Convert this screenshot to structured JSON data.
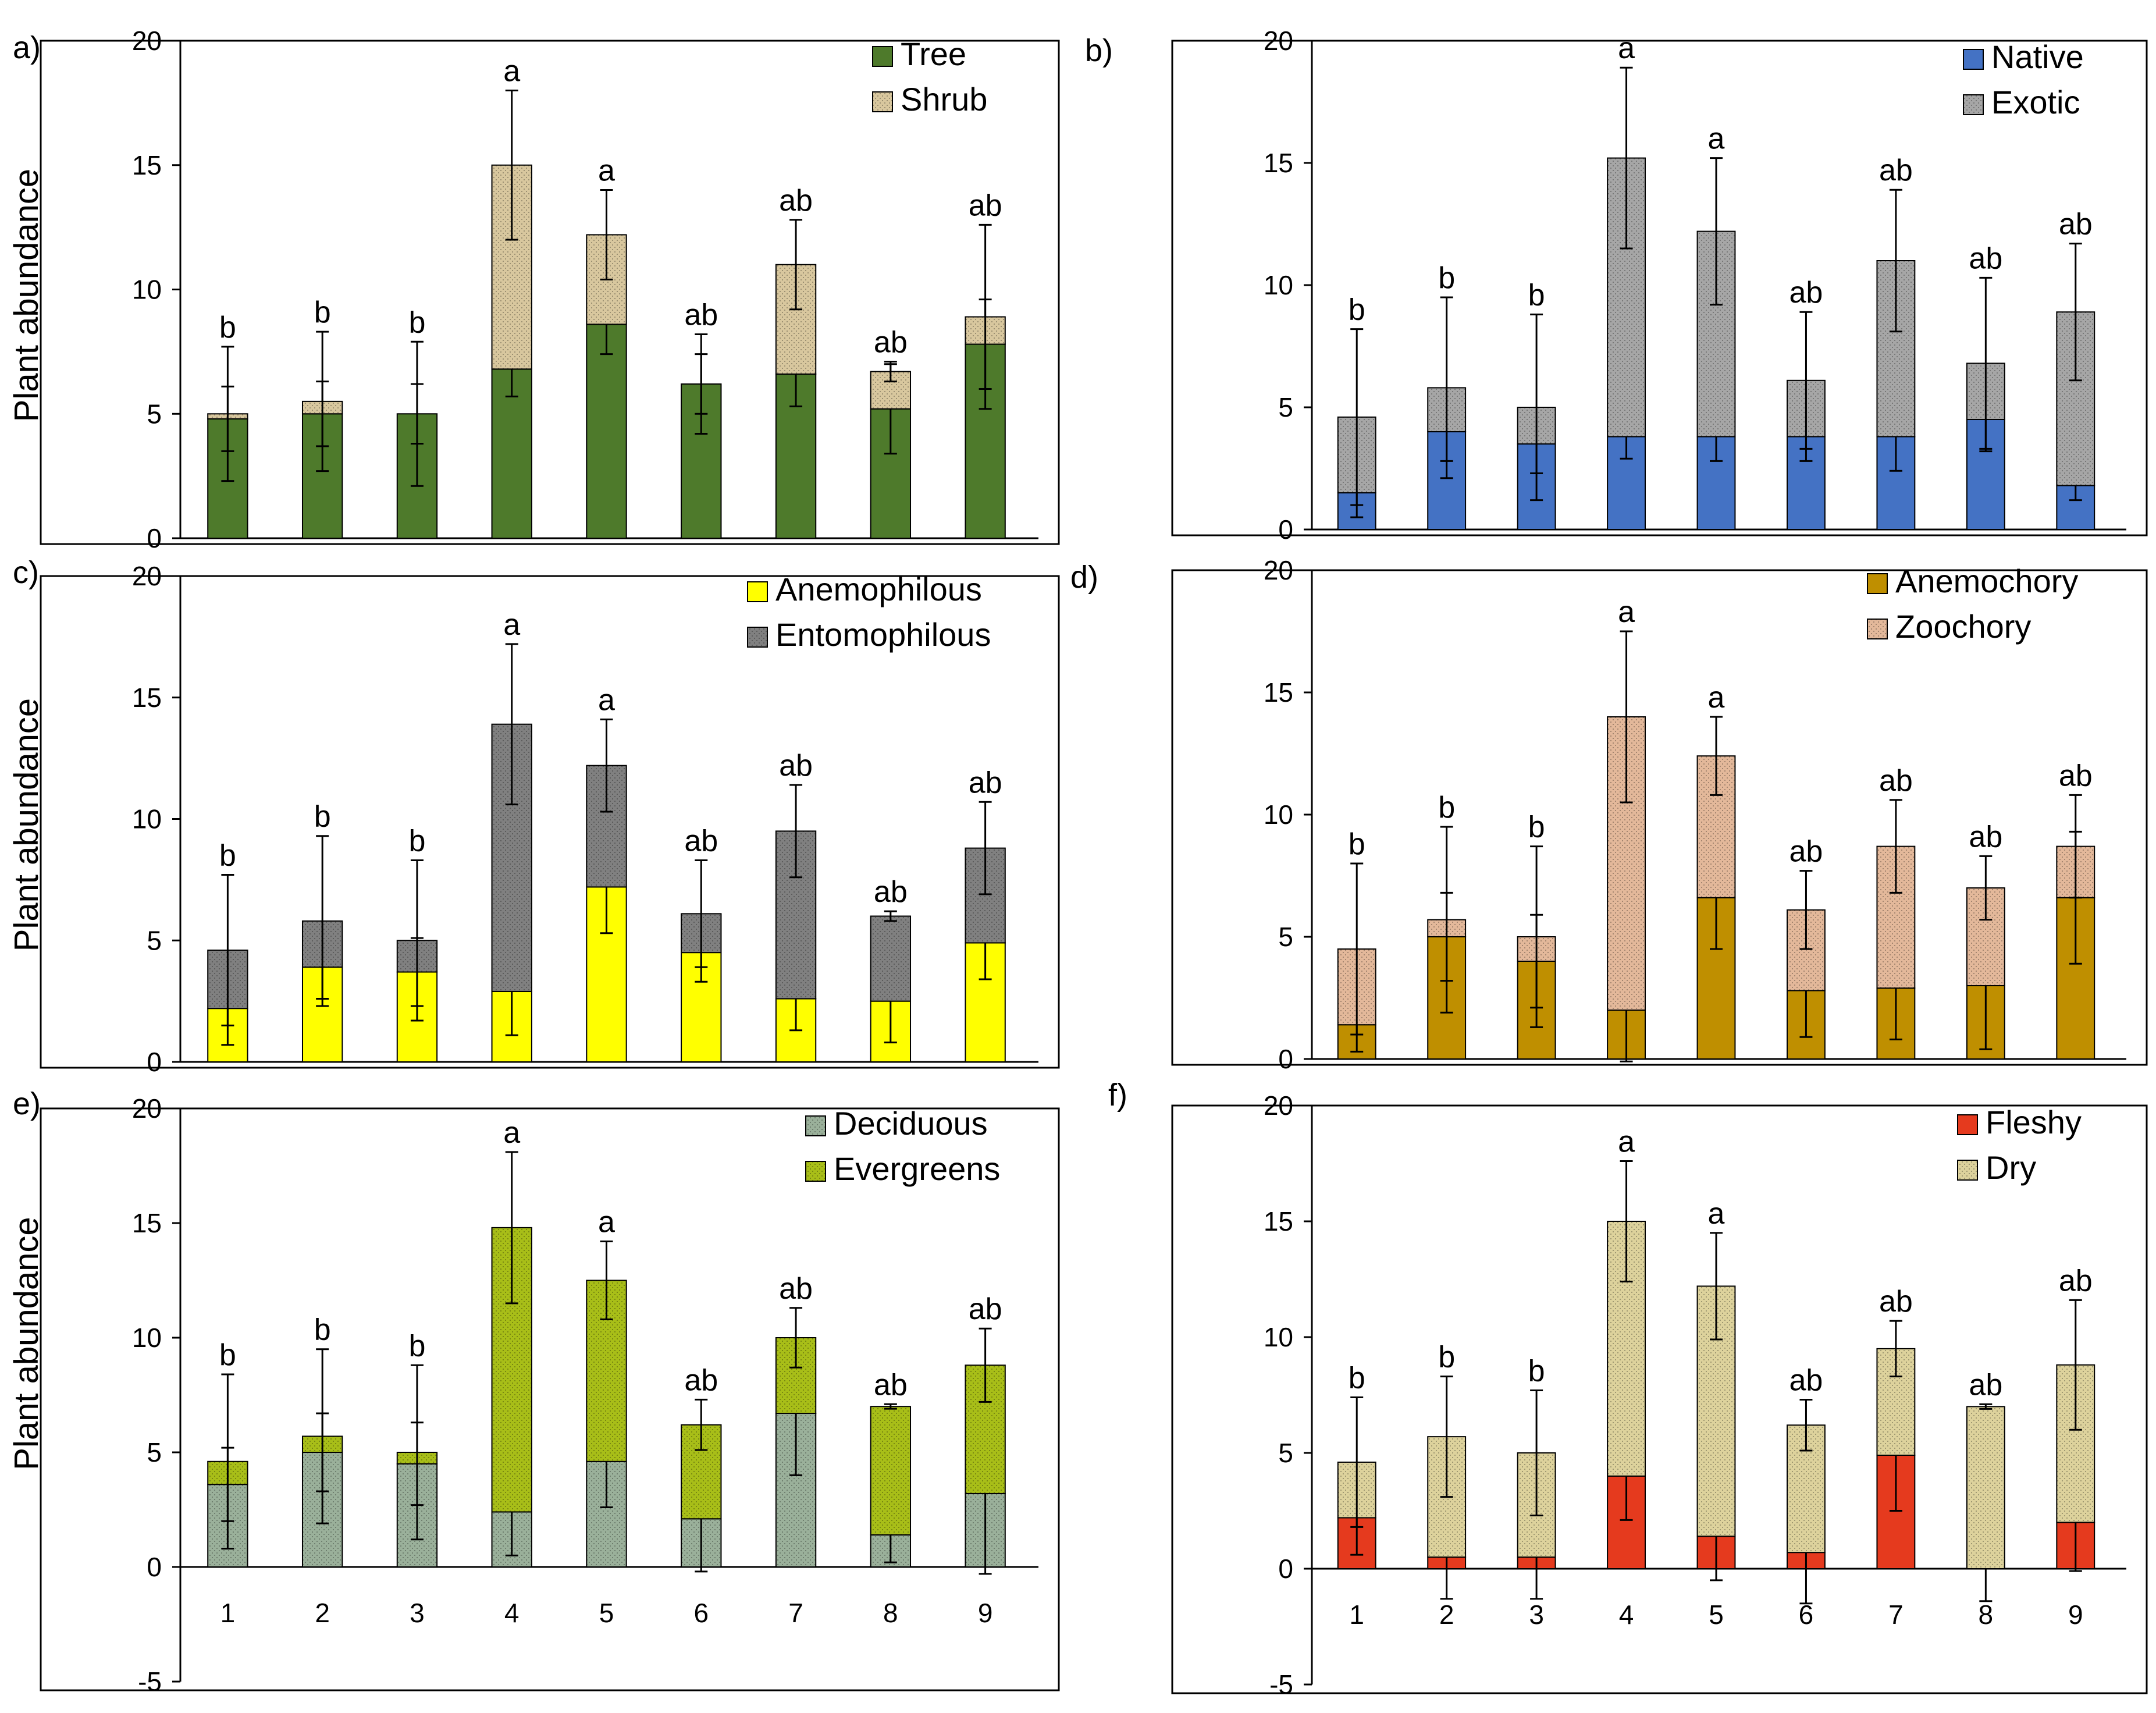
{
  "figure": {
    "categories": [
      "1",
      "2",
      "3",
      "4",
      "5",
      "6",
      "7",
      "8",
      "9"
    ],
    "ylabel": "Plant abundance"
  },
  "chart_data": [
    {
      "panel": "a)",
      "type": "bar",
      "stacked": true,
      "ylabel": "Plant abundance",
      "ylim": [
        0,
        20
      ],
      "yticks": [
        0,
        5,
        10,
        15,
        20
      ],
      "categories": [
        "1",
        "2",
        "3",
        "4",
        "5",
        "6",
        "7",
        "8",
        "9"
      ],
      "show_xticks": false,
      "series": [
        {
          "name": "Tree",
          "color": "#4E7A2B",
          "pattern": "solid",
          "values": [
            4.8,
            5.0,
            5.0,
            6.8,
            8.6,
            6.2,
            6.6,
            5.2,
            7.8
          ],
          "errors": [
            1.3,
            1.3,
            1.2,
            1.1,
            1.2,
            1.2,
            1.3,
            1.8,
            1.8
          ]
        },
        {
          "name": "Shrub",
          "color": "#D8C79E",
          "pattern": "dots",
          "values": [
            0.2,
            0.5,
            0.0,
            8.2,
            3.6,
            0.0,
            4.4,
            1.5,
            1.1
          ],
          "errors": [
            2.7,
            2.8,
            2.9,
            3.0,
            1.8,
            2.0,
            1.8,
            0.4,
            3.7
          ]
        }
      ],
      "letters": [
        "b",
        "b",
        "b",
        "a",
        "a",
        "ab",
        "ab",
        "ab",
        "ab"
      ]
    },
    {
      "panel": "b)",
      "type": "bar",
      "stacked": true,
      "ylabel": "",
      "ylim": [
        0,
        20
      ],
      "yticks": [
        0,
        5,
        10,
        15,
        20
      ],
      "categories": [
        "1",
        "2",
        "3",
        "4",
        "5",
        "6",
        "7",
        "8",
        "9"
      ],
      "show_xticks": false,
      "series": [
        {
          "name": "Native",
          "color": "#4472C4",
          "pattern": "solid",
          "values": [
            1.5,
            4.0,
            3.5,
            3.8,
            3.8,
            3.8,
            3.8,
            4.5,
            1.8
          ],
          "errors": [
            1.0,
            1.2,
            1.2,
            0.9,
            1.0,
            1.0,
            1.4,
            1.3,
            0.6
          ]
        },
        {
          "name": "Exotic",
          "color": "#A6A6A6",
          "pattern": "dots",
          "values": [
            3.1,
            1.8,
            1.5,
            11.4,
            8.4,
            2.3,
            7.2,
            2.3,
            7.1
          ],
          "errors": [
            3.6,
            3.7,
            3.8,
            3.7,
            3.0,
            2.8,
            2.9,
            3.5,
            2.8
          ]
        }
      ],
      "letters": [
        "b",
        "b",
        "b",
        "a",
        "a",
        "ab",
        "ab",
        "ab",
        "ab"
      ]
    },
    {
      "panel": "c)",
      "type": "bar",
      "stacked": true,
      "ylabel": "Plant abundance",
      "ylim": [
        0,
        20
      ],
      "yticks": [
        0,
        5,
        10,
        15,
        20
      ],
      "categories": [
        "1",
        "2",
        "3",
        "4",
        "5",
        "6",
        "7",
        "8",
        "9"
      ],
      "show_xticks": false,
      "series": [
        {
          "name": "Anemophilous",
          "color": "#FFFF00",
          "pattern": "solid",
          "values": [
            2.2,
            3.9,
            3.7,
            2.9,
            7.2,
            4.5,
            2.6,
            2.5,
            4.9
          ],
          "errors": [
            1.5,
            1.3,
            1.4,
            1.8,
            1.9,
            1.2,
            1.3,
            1.7,
            1.5
          ]
        },
        {
          "name": "Entomophilous",
          "color": "#808080",
          "pattern": "dots",
          "values": [
            2.4,
            1.9,
            1.3,
            11.0,
            5.0,
            1.6,
            6.9,
            3.5,
            3.9
          ],
          "errors": [
            3.1,
            3.5,
            3.3,
            3.3,
            1.9,
            2.2,
            1.9,
            0.2,
            1.9
          ]
        }
      ],
      "letters": [
        "b",
        "b",
        "b",
        "a",
        "a",
        "ab",
        "ab",
        "ab",
        "ab"
      ]
    },
    {
      "panel": "d)",
      "type": "bar",
      "stacked": true,
      "ylabel": "",
      "ylim": [
        0,
        20
      ],
      "yticks": [
        0,
        5,
        10,
        15,
        20
      ],
      "categories": [
        "1",
        "2",
        "3",
        "4",
        "5",
        "6",
        "7",
        "8",
        "9"
      ],
      "show_xticks": false,
      "series": [
        {
          "name": "Anemochory",
          "color": "#BF8F00",
          "pattern": "solid",
          "values": [
            1.4,
            5.0,
            4.0,
            2.0,
            6.6,
            2.8,
            2.9,
            3.0,
            6.6
          ],
          "errors": [
            1.1,
            1.8,
            1.9,
            2.1,
            2.1,
            1.9,
            2.1,
            2.6,
            2.7
          ]
        },
        {
          "name": "Zoochory",
          "color": "#E3B89A",
          "pattern": "dots",
          "values": [
            3.1,
            0.7,
            1.0,
            12.0,
            5.8,
            3.3,
            5.8,
            4.0,
            2.1
          ],
          "errors": [
            3.5,
            3.8,
            3.7,
            3.5,
            1.6,
            1.6,
            1.9,
            1.3,
            2.1
          ]
        }
      ],
      "letters": [
        "b",
        "b",
        "b",
        "a",
        "a",
        "ab",
        "ab",
        "ab",
        "ab"
      ]
    },
    {
      "panel": "e)",
      "type": "bar",
      "stacked": true,
      "ylabel": "Plant abundance",
      "ylim": [
        -5,
        20
      ],
      "yticks": [
        -5,
        0,
        5,
        10,
        15,
        20
      ],
      "categories": [
        "1",
        "2",
        "3",
        "4",
        "5",
        "6",
        "7",
        "8",
        "9"
      ],
      "show_xticks": true,
      "series": [
        {
          "name": "Deciduous",
          "color": "#9AB09A",
          "pattern": "dots",
          "values": [
            3.6,
            5.0,
            4.5,
            2.4,
            4.6,
            2.1,
            6.7,
            1.4,
            3.2
          ],
          "errors": [
            1.6,
            1.7,
            1.8,
            1.9,
            2.0,
            2.3,
            2.7,
            1.2,
            3.5
          ]
        },
        {
          "name": "Evergreens",
          "color": "#A8BE18",
          "pattern": "dots",
          "values": [
            1.0,
            0.7,
            0.5,
            12.4,
            7.9,
            4.1,
            3.3,
            5.6,
            5.6
          ],
          "errors": [
            3.8,
            3.8,
            3.8,
            3.3,
            1.7,
            1.1,
            1.3,
            0.1,
            1.6
          ]
        }
      ],
      "letters": [
        "b",
        "b",
        "b",
        "a",
        "a",
        "ab",
        "ab",
        "ab",
        "ab"
      ]
    },
    {
      "panel": "f)",
      "type": "bar",
      "stacked": true,
      "ylabel": "",
      "ylim": [
        -5,
        20
      ],
      "yticks": [
        -5,
        0,
        5,
        10,
        15,
        20
      ],
      "categories": [
        "1",
        "2",
        "3",
        "4",
        "5",
        "6",
        "7",
        "8",
        "9"
      ],
      "show_xticks": true,
      "series": [
        {
          "name": "Fleshy",
          "color": "#E53A1E",
          "pattern": "solid",
          "values": [
            2.2,
            0.5,
            0.5,
            4.0,
            1.4,
            0.7,
            4.9,
            0.0,
            2.0
          ],
          "errors": [
            1.6,
            1.8,
            1.8,
            1.9,
            1.9,
            2.2,
            2.4,
            1.4,
            2.1
          ]
        },
        {
          "name": "Dry",
          "color": "#DDD29C",
          "pattern": "dots",
          "values": [
            2.4,
            5.2,
            4.5,
            11.0,
            10.8,
            5.5,
            4.6,
            7.0,
            6.8
          ],
          "errors": [
            2.8,
            2.6,
            2.7,
            2.6,
            2.3,
            1.1,
            1.2,
            0.1,
            2.8
          ]
        }
      ],
      "letters": [
        "b",
        "b",
        "b",
        "a",
        "a",
        "ab",
        "ab",
        "ab",
        "ab"
      ]
    }
  ]
}
